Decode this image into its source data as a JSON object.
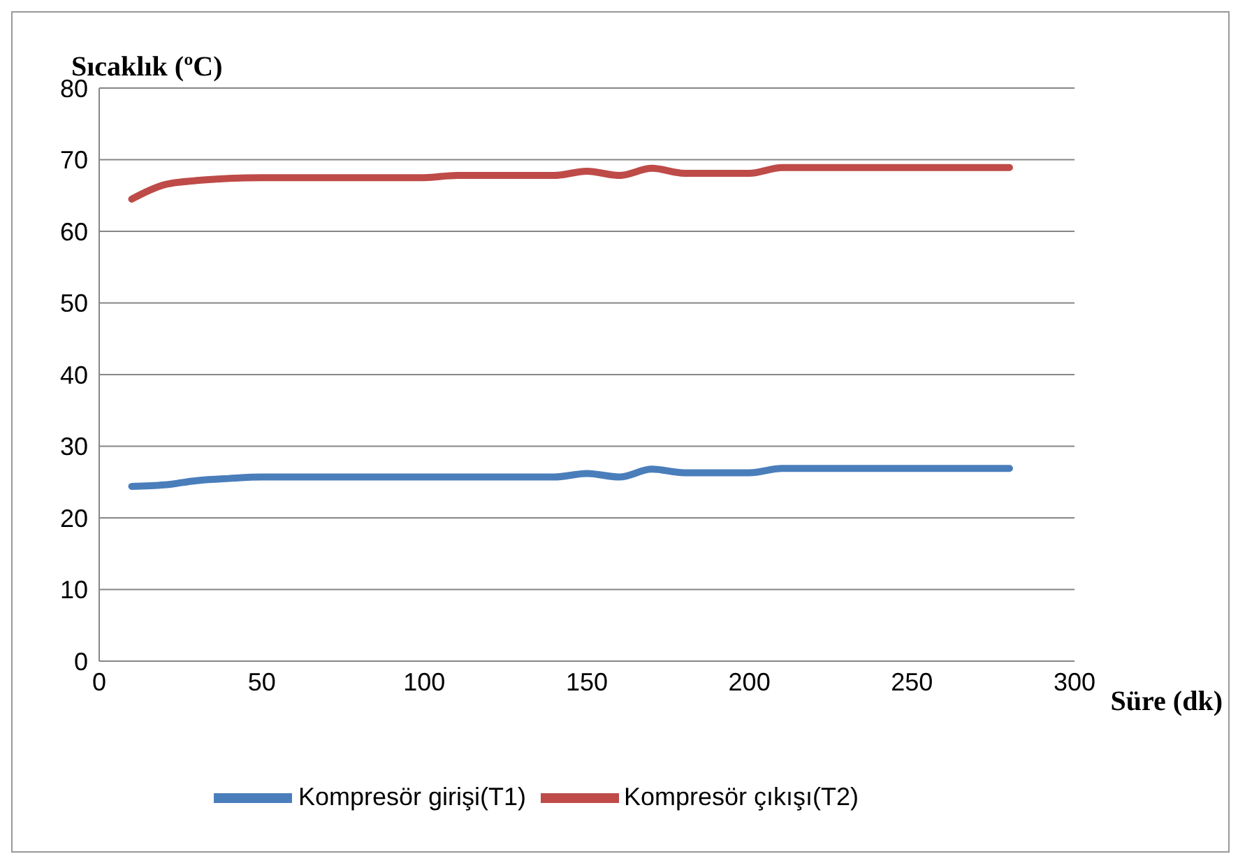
{
  "chart_data": {
    "type": "line",
    "xlabel": "Süre (dk)",
    "ylabel": "Sıcaklık (ºC)",
    "x": [
      10,
      20,
      30,
      40,
      50,
      60,
      70,
      80,
      90,
      100,
      110,
      120,
      130,
      140,
      150,
      160,
      170,
      180,
      190,
      200,
      210,
      220,
      230,
      240,
      250,
      260,
      270,
      280
    ],
    "series": [
      {
        "name": "Kompresör girişi(T1)",
        "color": "#4a7ebb",
        "values": [
          24.4,
          24.6,
          25.2,
          25.5,
          25.7,
          25.7,
          25.7,
          25.7,
          25.7,
          25.7,
          25.7,
          25.7,
          25.7,
          25.7,
          26.2,
          25.7,
          26.8,
          26.3,
          26.3,
          26.3,
          26.9,
          26.9,
          26.9,
          26.9,
          26.9,
          26.9,
          26.9,
          26.9
        ]
      },
      {
        "name": "Kompresör çıkışı(T2)",
        "color": "#be4b48",
        "values": [
          64.5,
          66.5,
          67.1,
          67.4,
          67.5,
          67.5,
          67.5,
          67.5,
          67.5,
          67.5,
          67.8,
          67.8,
          67.8,
          67.8,
          68.4,
          67.8,
          68.8,
          68.1,
          68.1,
          68.1,
          68.9,
          68.9,
          68.9,
          68.9,
          68.9,
          68.9,
          68.9,
          68.9
        ]
      }
    ],
    "xlim": [
      0,
      300
    ],
    "xticks": [
      0,
      50,
      100,
      150,
      200,
      250,
      300
    ],
    "ylim": [
      0,
      80
    ],
    "yticks": [
      0,
      10,
      20,
      30,
      40,
      50,
      60,
      70,
      80
    ],
    "grid": "y",
    "legend": "bottom",
    "marker": "none",
    "line_style": "solid"
  }
}
